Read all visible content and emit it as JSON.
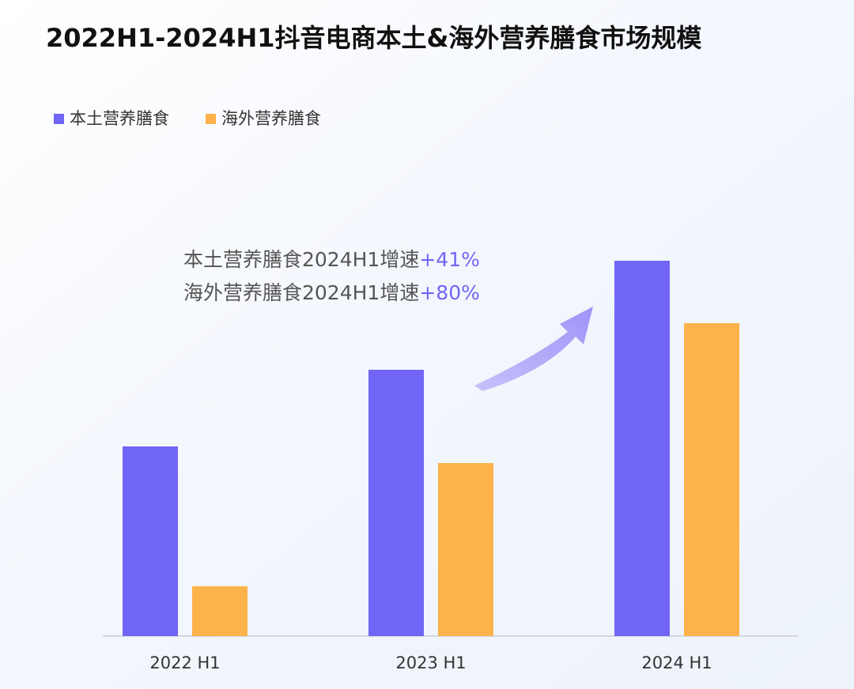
{
  "chart_data": {
    "type": "bar",
    "title": "2022H1-2024H1抖音电商本土&海外营养膳食市场规模",
    "categories": [
      "2022 H1",
      "2023 H1",
      "2024 H1"
    ],
    "series": [
      {
        "name": "本土营养膳食",
        "color": "#7165f5",
        "values": [
          240,
          337,
          475
        ]
      },
      {
        "name": "海外营养膳食",
        "color": "#fdb24b",
        "values": [
          63,
          219,
          396
        ]
      }
    ],
    "annotations": [
      {
        "text": "本土营养膳食2024H1增速",
        "highlight": "+41%"
      },
      {
        "text": "海外营养膳食2024H1增速",
        "highlight": "+80%"
      }
    ],
    "legend": "top-left"
  }
}
